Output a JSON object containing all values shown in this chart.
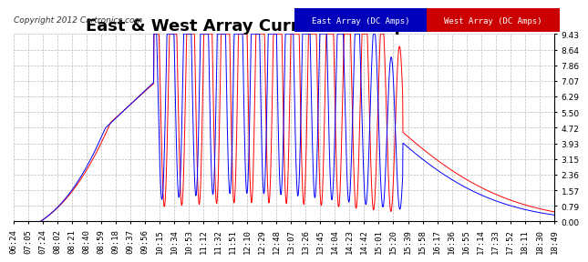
{
  "title": "East & West Array Current Sat Sep 8 19:01",
  "copyright": "Copyright 2012 Cartronics.com",
  "legend_east": "East Array (DC Amps)",
  "legend_west": "West Array (DC Amps)",
  "east_color": "#0000ff",
  "west_color": "#ff0000",
  "legend_east_bg": "#0000bb",
  "legend_west_bg": "#cc0000",
  "background_color": "#ffffff",
  "plot_bg_color": "#ffffff",
  "grid_color": "#bbbbbb",
  "yticks": [
    0.0,
    0.79,
    1.57,
    2.36,
    3.15,
    3.93,
    4.72,
    5.5,
    6.29,
    7.07,
    7.86,
    8.64,
    9.43
  ],
  "ymax": 9.43,
  "ymin": 0.0,
  "xtick_labels": [
    "06:24",
    "07:05",
    "07:24",
    "08:02",
    "08:21",
    "08:40",
    "08:59",
    "09:18",
    "09:37",
    "09:56",
    "10:15",
    "10:34",
    "10:53",
    "11:12",
    "11:32",
    "11:51",
    "12:10",
    "12:29",
    "12:48",
    "13:07",
    "13:26",
    "13:45",
    "14:04",
    "14:23",
    "14:42",
    "15:01",
    "15:20",
    "15:39",
    "15:58",
    "16:17",
    "16:36",
    "16:55",
    "17:14",
    "17:33",
    "17:52",
    "18:11",
    "18:30",
    "18:49"
  ],
  "title_fontsize": 13,
  "tick_fontsize": 6.5,
  "copyright_fontsize": 6.5
}
